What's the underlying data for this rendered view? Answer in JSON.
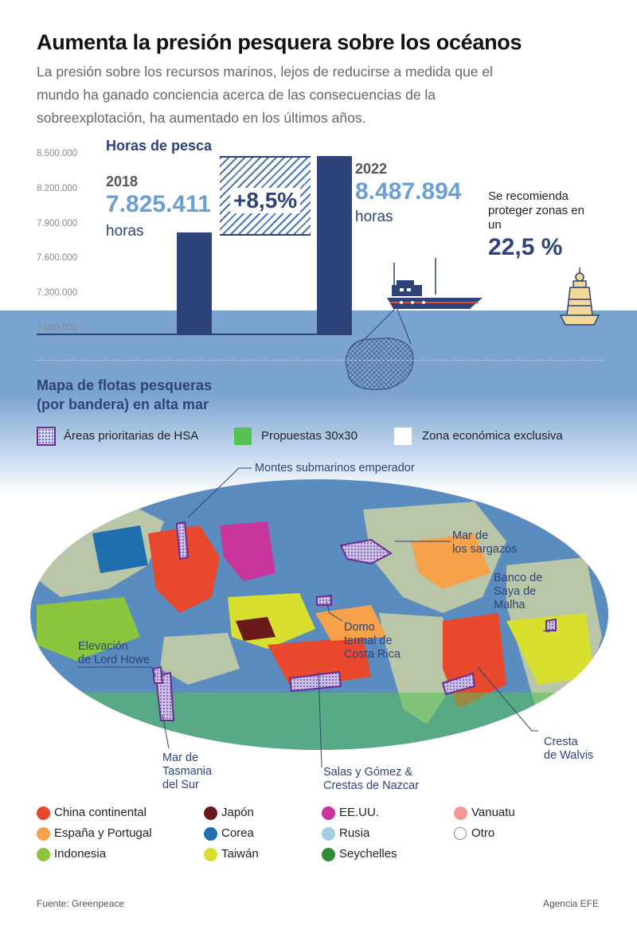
{
  "header": {
    "title": "Aumenta la presión pesquera sobre los océanos",
    "subtitle": "La presión sobre los recursos marinos, lejos de reducirse a medida que el mundo ha ganado conciencia acerca de las consecuencias de la sobreexplotación, ha aumentado en los últimos años."
  },
  "chart_data": {
    "type": "bar",
    "title": "Horas de pesca",
    "categories": [
      "2018",
      "2022"
    ],
    "values": [
      7825411,
      8487894
    ],
    "value_labels": [
      "7.825.411",
      "8.487.894"
    ],
    "unit_label": "horas",
    "ylim": [
      7000000,
      8500000
    ],
    "yticks": [
      "8.500.000",
      "8.200.000",
      "7.900.000",
      "7.600.000",
      "7.300.000",
      "7.000.000"
    ],
    "change_label": "+8,5%",
    "colors": {
      "bar": "#2e4379",
      "value": "#6a9fd6",
      "hatch": "#4a76b5"
    }
  },
  "recommendation": {
    "text": "Se recomienda proteger zonas en un",
    "value": "22,5 %"
  },
  "map": {
    "title_line1": "Mapa de flotas pesqueras",
    "title_line2": "(por bandera) en alta mar",
    "legend": [
      {
        "label": "Áreas prioritarias de HSA",
        "color": "#6b2c91"
      },
      {
        "label": "Propuestas 30x30",
        "color": "#55c155"
      },
      {
        "label": "Zona económica exclusiva",
        "color": "#ffffff"
      }
    ],
    "annotations": {
      "emperador": "Montes submarinos emperador",
      "sargazos_1": "Mar de",
      "sargazos_2": "los sargazos",
      "saya_1": "Banco de",
      "saya_2": "Saya de",
      "saya_3": "Malha",
      "domo_1": "Domo",
      "domo_2": "termal de",
      "domo_3": "Costa Rica",
      "lordhowe_1": "Elevación",
      "lordhowe_2": "de Lord Howe",
      "walvis_1": "Cresta",
      "walvis_2": "de Walvis",
      "tasmania_1": "Mar de",
      "tasmania_2": "Tasmania",
      "tasmania_3": "del Sur",
      "nazca_1": "Salas y Gómez &",
      "nazca_2": "Crestas de Nazcar"
    }
  },
  "flags": [
    {
      "label": "China continental",
      "color": "#e8482c"
    },
    {
      "label": "Japón",
      "color": "#6b1a1a"
    },
    {
      "label": "EE.UU.",
      "color": "#c8359b"
    },
    {
      "label": "Vanuatu",
      "color": "#f49a96"
    },
    {
      "label": "España y Portugal",
      "color": "#f6a24b"
    },
    {
      "label": "Corea",
      "color": "#1f6fae"
    },
    {
      "label": "Rusia",
      "color": "#a6cde0"
    },
    {
      "label": "Otro",
      "color": "#ffffff"
    },
    {
      "label": "Indonesia",
      "color": "#8cc63f"
    },
    {
      "label": "Taiwán",
      "color": "#d9df2e"
    },
    {
      "label": "Seychelles",
      "color": "#2f8a3a"
    }
  ],
  "footer": {
    "source": "Fuente: Greenpeace",
    "agency": "Agencia EFE"
  }
}
